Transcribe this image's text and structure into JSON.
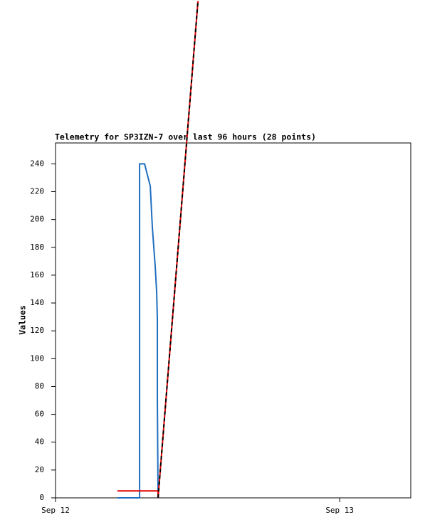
{
  "chart_data": {
    "type": "line",
    "title": "Telemetry for SP3IZN-7 over last 96 hours (28 points)",
    "y_label": "Values",
    "xlim": [
      0,
      30
    ],
    "xticks": [
      {
        "value": 0,
        "label": "Sep 12"
      },
      {
        "value": 24,
        "label": "Sep 13"
      }
    ],
    "ylim": [
      0,
      255
    ],
    "yticks": [
      0,
      20,
      40,
      60,
      80,
      100,
      120,
      140,
      160,
      180,
      200,
      220,
      240
    ],
    "series": [
      {
        "color": "#1f6fbf",
        "dashed": false,
        "x": [
          5.23,
          7.04,
          7.1,
          7.1,
          7.1,
          7.52,
          8.0,
          8.18,
          8.42,
          8.54,
          8.6,
          8.6,
          8.66
        ],
        "values": [
          0,
          0,
          0,
          88,
          240,
          240,
          224,
          194,
          166,
          148,
          128,
          70,
          0
        ]
      },
      {
        "color": "#e00000",
        "dashed": false,
        "x": [
          5.23,
          8.66,
          8.66,
          12.03
        ],
        "values": [
          5,
          5,
          0,
          357
        ]
      },
      {
        "color": "#000000",
        "dashed": true,
        "x": [
          8.66,
          12.03
        ],
        "values": [
          0,
          357
        ]
      }
    ]
  }
}
